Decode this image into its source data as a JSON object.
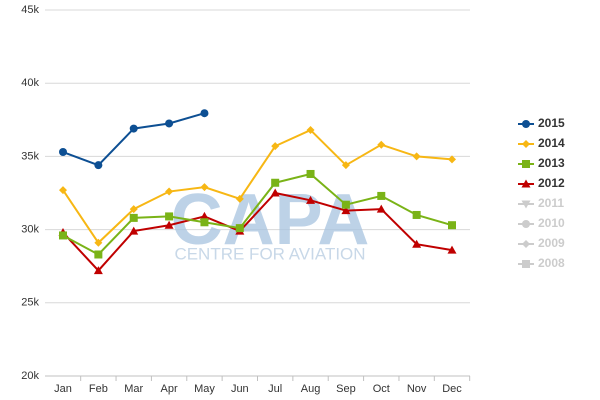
{
  "chart_data": {
    "type": "line",
    "watermark": "CAPA",
    "watermark_subtitle": "CENTRE FOR AVIATION",
    "categories": [
      "Jan",
      "Feb",
      "Mar",
      "Apr",
      "May",
      "Jun",
      "Jul",
      "Aug",
      "Sep",
      "Oct",
      "Nov",
      "Dec"
    ],
    "ylim": [
      20000,
      45000
    ],
    "yticks": [
      {
        "value": 20000,
        "label": "20k"
      },
      {
        "value": 25000,
        "label": "25k"
      },
      {
        "value": 30000,
        "label": "30k"
      },
      {
        "value": 35000,
        "label": "35k"
      },
      {
        "value": 40000,
        "label": "40k"
      },
      {
        "value": 45000,
        "label": "45k"
      }
    ],
    "grid": true,
    "legend": "right",
    "hidden_color": "#cccccc",
    "series": [
      {
        "name": "2015",
        "color": "#0d4f93",
        "marker": "circle",
        "visible": true,
        "values": [
          35300,
          34400,
          36900,
          37250,
          37950,
          null,
          null,
          null,
          null,
          null,
          null,
          null
        ]
      },
      {
        "name": "2014",
        "color": "#f7b714",
        "marker": "diamond",
        "visible": true,
        "values": [
          32700,
          29100,
          31400,
          32600,
          32900,
          32100,
          35700,
          36800,
          34400,
          35800,
          35000,
          34800
        ]
      },
      {
        "name": "2013",
        "color": "#7ab317",
        "marker": "square",
        "visible": true,
        "values": [
          29600,
          28300,
          30800,
          30900,
          30500,
          30100,
          33200,
          33800,
          31700,
          32300,
          31000,
          30300
        ]
      },
      {
        "name": "2012",
        "color": "#c00000",
        "marker": "triangle",
        "visible": true,
        "values": [
          29800,
          27200,
          29900,
          30300,
          30900,
          29900,
          32500,
          32000,
          31300,
          31400,
          29000,
          28600
        ]
      },
      {
        "name": "2011",
        "color": "#999999",
        "marker": "triangle-down",
        "visible": false,
        "values": [
          null,
          null,
          null,
          null,
          null,
          null,
          null,
          null,
          null,
          null,
          null,
          null
        ]
      },
      {
        "name": "2010",
        "color": "#999999",
        "marker": "circle",
        "visible": false,
        "values": [
          null,
          null,
          null,
          null,
          null,
          null,
          null,
          null,
          null,
          null,
          null,
          null
        ]
      },
      {
        "name": "2009",
        "color": "#999999",
        "marker": "diamond",
        "visible": false,
        "values": [
          null,
          null,
          null,
          null,
          null,
          null,
          null,
          null,
          null,
          null,
          null,
          null
        ]
      },
      {
        "name": "2008",
        "color": "#999999",
        "marker": "square",
        "visible": false,
        "values": [
          null,
          null,
          null,
          null,
          null,
          null,
          null,
          null,
          null,
          null,
          null,
          null
        ]
      }
    ]
  }
}
